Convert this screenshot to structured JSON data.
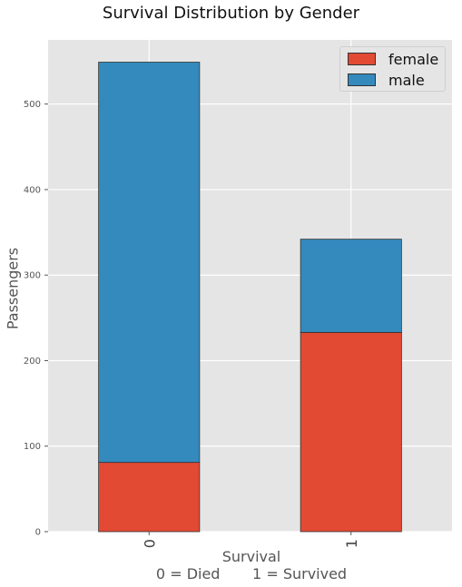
{
  "chart_data": {
    "type": "bar",
    "stacked": true,
    "title": "Survival Distribution by Gender",
    "xlabel": "Survival",
    "xlabel_sub": "0 = Died       1 = Survived",
    "ylabel": "Passengers",
    "categories": [
      "0",
      "1"
    ],
    "series": [
      {
        "name": "female",
        "values": [
          81,
          233
        ],
        "color": "#e24a33"
      },
      {
        "name": "male",
        "values": [
          468,
          109
        ],
        "color": "#348abd"
      }
    ],
    "ylim": [
      0,
      575
    ],
    "yticks": [
      0,
      100,
      200,
      300,
      400,
      500
    ],
    "grid": true,
    "legend": "top-right",
    "background": "#e5e5e5"
  }
}
